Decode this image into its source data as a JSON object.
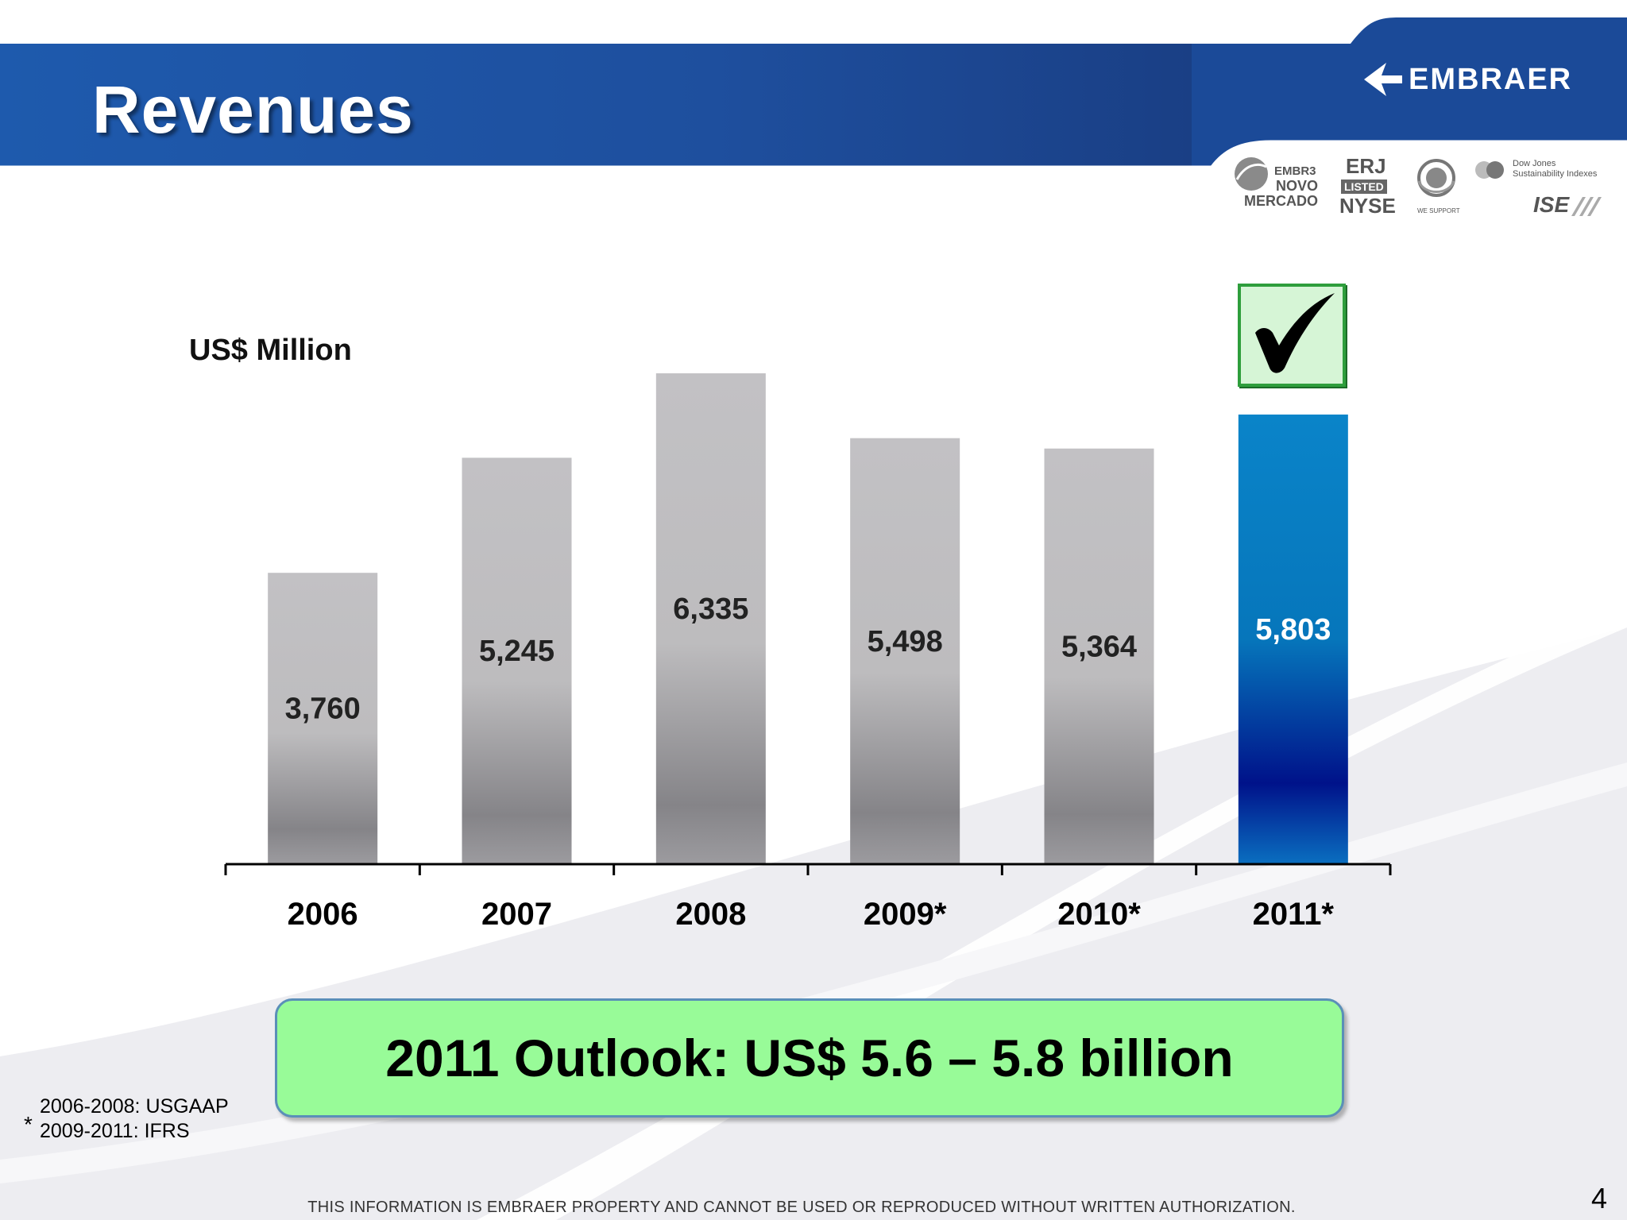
{
  "slide": {
    "title": "Revenues",
    "unit_label": "US$ Million",
    "outlook_text": "2011 Outlook:  US$ 5.6 – 5.8 billion",
    "footnote_marker": "*",
    "footnote_lines": [
      "2006-2008: USGAAP",
      "2009-2011: IFRS"
    ],
    "disclaimer": "THIS INFORMATION IS EMBRAER PROPERTY AND CANNOT BE USED OR REPRODUCED WITHOUT WRITTEN AUTHORIZATION.",
    "page_number": "4"
  },
  "brand": {
    "name": "EMBRAER"
  },
  "badges": {
    "novo_mercado": [
      "EMBR3",
      "NOVO",
      "MERCADO"
    ],
    "nyse": [
      "ERJ",
      "LISTED",
      "NYSE"
    ],
    "global_compact": "WE SUPPORT",
    "dow_jones": [
      "Dow Jones",
      "Sustainability Indexes"
    ],
    "ise": "ISE"
  },
  "colors": {
    "header_blue": "#1f57a8",
    "bar_gray": "#bdbcbe",
    "bar_highlight": "#0a84c9",
    "outlook_green": "#98fb98",
    "check_green": "#2e9e3c"
  },
  "icons": {
    "check": "check-mark-icon",
    "logo": "embraer-arrow-icon",
    "globe": "globe-icon"
  },
  "chart_data": {
    "type": "bar",
    "categories": [
      "2006",
      "2007",
      "2008",
      "2009*",
      "2010*",
      "2011*"
    ],
    "values": [
      3760,
      5245,
      6335,
      5498,
      5364,
      5803
    ],
    "value_labels": [
      "3,760",
      "5,245",
      "6,335",
      "5,498",
      "5,364",
      "5,803"
    ],
    "highlight_index": 5,
    "ylabel": "US$ Million",
    "ylim": [
      0,
      6335
    ],
    "grid": false
  }
}
